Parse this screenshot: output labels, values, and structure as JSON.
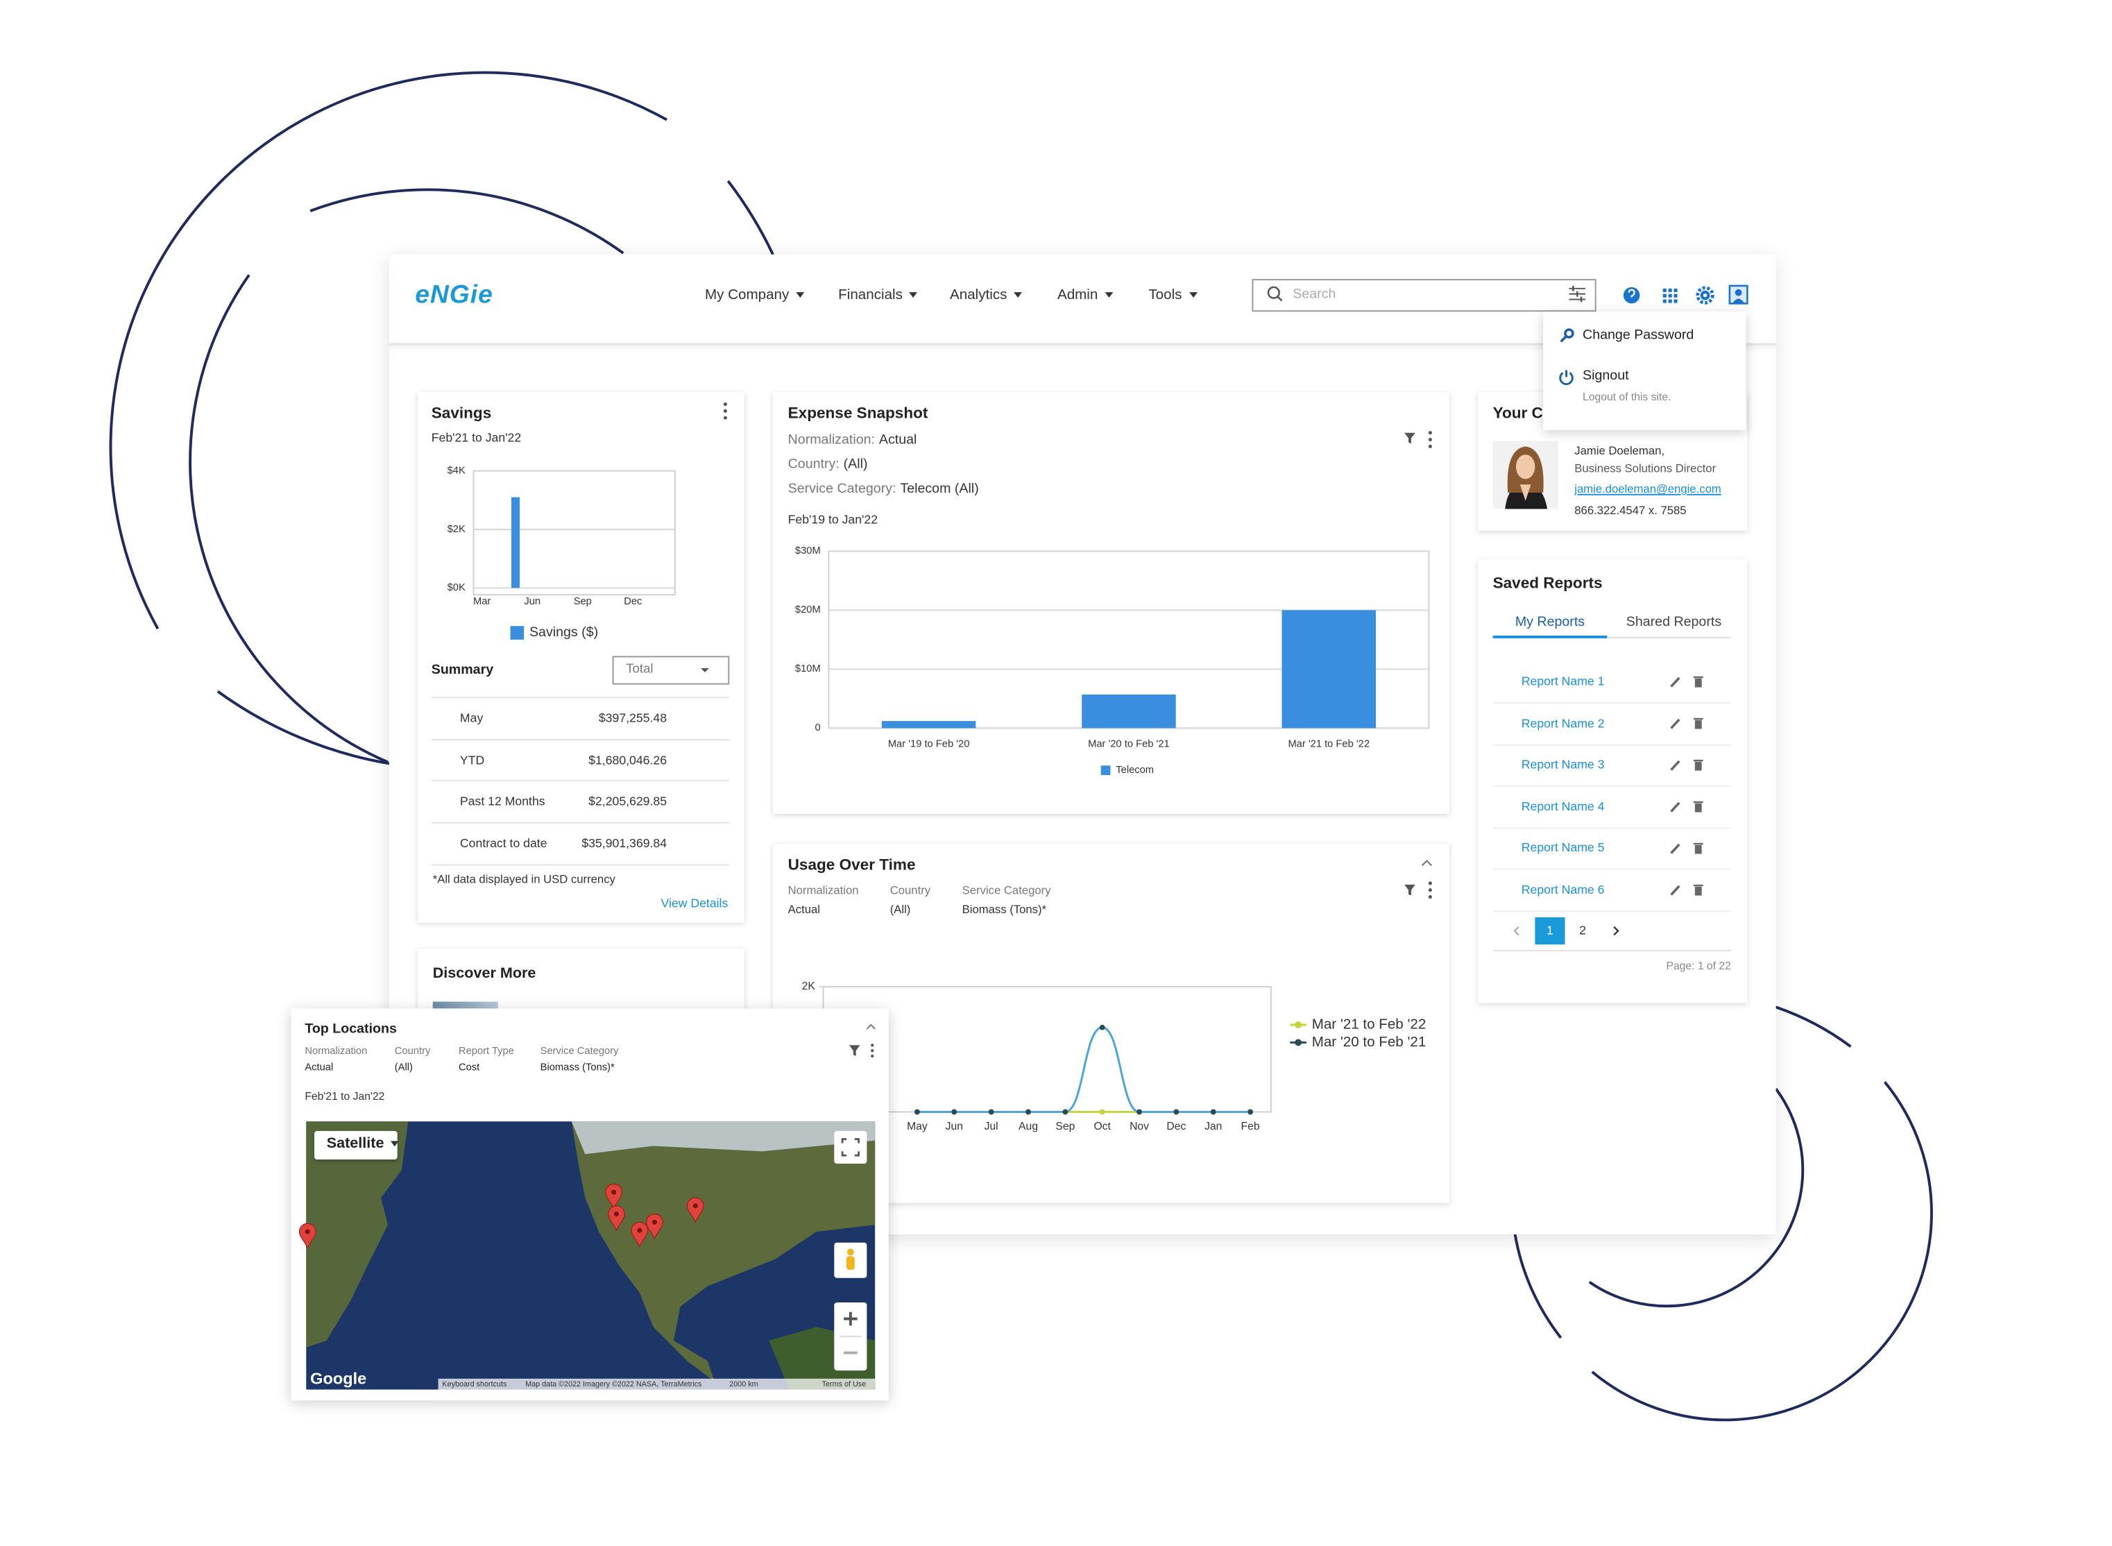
{
  "header": {
    "logo": "eNGie",
    "nav": [
      "My Company",
      "Financials",
      "Analytics",
      "Admin",
      "Tools"
    ],
    "search_placeholder": "Search"
  },
  "user_menu": {
    "items": [
      {
        "label": "Change Password"
      },
      {
        "label": "Signout",
        "note": "Logout of this site."
      }
    ]
  },
  "savings": {
    "title": "Savings",
    "period": "Feb'21 to Jan'22",
    "summary_title": "Summary",
    "select": "Total",
    "rows": [
      [
        "May",
        "$397,255.48"
      ],
      [
        "YTD",
        "$1,680,046.26"
      ],
      [
        "Past 12 Months",
        "$2,205,629.85"
      ],
      [
        "Contract to date",
        "$35,901,369.84"
      ]
    ],
    "footnote": "*All data displayed in USD currency",
    "link": "View Details"
  },
  "discover": {
    "title": "Discover More"
  },
  "expense": {
    "title": "Expense Snapshot",
    "filters": [
      [
        "Normalization:",
        "Actual"
      ],
      [
        "Country:",
        "(All)"
      ],
      [
        "Service Category:",
        "Telecom (All)"
      ]
    ],
    "period": "Feb'19 to Jan'22"
  },
  "usage": {
    "title": "Usage Over Time",
    "filters": [
      [
        "Normalization",
        "Actual"
      ],
      [
        "Country",
        "(All)"
      ],
      [
        "Service Category",
        "Biomass (Tons)*"
      ]
    ]
  },
  "contact": {
    "title": "Your Co",
    "name": "Jamie Doeleman,",
    "role": "Business Solutions Director",
    "email": "jamie.doeleman@engie.com",
    "phone": "866.322.4547 x. 7585"
  },
  "saved_reports": {
    "title": "Saved Reports",
    "tabs": [
      "My Reports",
      "Shared Reports"
    ],
    "reports": [
      "Report Name 1",
      "Report Name 2",
      "Report Name 3",
      "Report Name 4",
      "Report Name 5",
      "Report Name 6"
    ],
    "pages": [
      "1",
      "2"
    ],
    "page_info": "Page: 1 of 22"
  },
  "top_locations": {
    "title": "Top Locations",
    "filters": [
      [
        "Normalization",
        "Actual"
      ],
      [
        "Country",
        "(All)"
      ],
      [
        "Report Type",
        "Cost"
      ],
      [
        "Service Category",
        "Biomass (Tons)*"
      ]
    ],
    "period": "Feb'21 to Jan'22",
    "map": {
      "type_button": "Satellite",
      "brand": "Google",
      "footer": [
        "Keyboard shortcuts",
        "Map data ©2022 Imagery ©2022 NASA, TerraMetrics",
        "2000 km",
        "Terms of Use"
      ]
    }
  },
  "chart_data": [
    {
      "type": "bar",
      "categories": [
        "Mar",
        null,
        null,
        "Jun",
        null,
        null,
        "Sep",
        null,
        null,
        "Dec",
        null,
        null
      ],
      "series": [
        {
          "name": "Savings ($)",
          "color": "#3a8ee0",
          "values": [
            0,
            0,
            3100,
            0,
            0,
            0,
            0,
            0,
            0,
            0,
            0,
            0
          ]
        }
      ],
      "ylim": [
        0,
        4000
      ],
      "yticks": [
        {
          "value": 0,
          "label": "$0K"
        },
        {
          "value": 2000,
          "label": "$2K"
        },
        {
          "value": 4000,
          "label": "$4K"
        }
      ],
      "grid": true
    },
    {
      "type": "bar",
      "categories": [
        "Mar '19 to Feb '20",
        "Mar '20 to Feb '21",
        "Mar '21 to Feb '22"
      ],
      "series": [
        {
          "name": "Telecom",
          "color": "#3a8ee0",
          "values": [
            1200000,
            5700000,
            20000000
          ]
        }
      ],
      "ylim": [
        0,
        30000000
      ],
      "yticks": [
        0,
        {
          "value": 10000000,
          "label": "$10M"
        },
        {
          "value": 20000000,
          "label": "$20M"
        },
        {
          "value": 30000000,
          "label": "$30M"
        }
      ],
      "grid": true
    },
    {
      "type": "line",
      "categories": [
        "May",
        "Jun",
        "Jul",
        "Aug",
        "Sep",
        "Oct",
        "Nov",
        "Dec",
        "Jan",
        "Feb"
      ],
      "series": [
        {
          "name": "Mar '21 to Feb '22",
          "color": "#c6d23a",
          "line_color": "#c6d23a",
          "values": [
            0,
            0,
            0,
            0,
            0,
            0,
            0,
            0,
            0,
            0
          ]
        },
        {
          "name": "Mar '20 to Feb '21",
          "color": "#2b4a58",
          "line_color": "#4aa3df",
          "values": [
            0,
            0,
            0,
            0,
            0,
            1350,
            0,
            0,
            0,
            0
          ]
        }
      ],
      "ylim": [
        0,
        2000
      ],
      "yticks": [
        {
          "value": 2000,
          "label": "2K"
        }
      ],
      "grid": false
    }
  ]
}
